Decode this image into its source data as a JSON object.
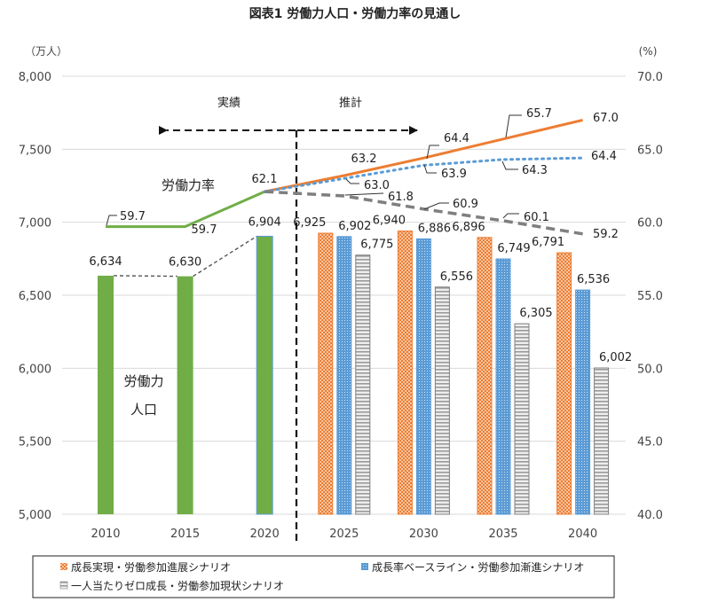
{
  "chart_data": {
    "type": "bar",
    "title": "図表1 労働力人口・労働力率の見通し",
    "categories": [
      "2010",
      "2015",
      "2020",
      "2025",
      "2030",
      "2035",
      "2040"
    ],
    "left_axis": {
      "unit_label": "（万人）",
      "ylim": [
        5000,
        8000
      ],
      "ticks": [
        "5,000",
        "5,500",
        "6,000",
        "6,500",
        "7,000",
        "7,500",
        "8,000"
      ],
      "tick_values": [
        5000,
        5500,
        6000,
        6500,
        7000,
        7500,
        8000
      ]
    },
    "right_axis": {
      "unit_label": "(%)",
      "ylim": [
        40,
        70
      ],
      "ticks": [
        "40.0",
        "45.0",
        "50.0",
        "55.0",
        "60.0",
        "65.0",
        "70.0"
      ],
      "tick_values": [
        40,
        45,
        50,
        55,
        60,
        65,
        70
      ]
    },
    "grid": true,
    "actual_bars": {
      "name": "労働力人口（実績）",
      "color": "#70ad47",
      "categories": [
        "2010",
        "2015",
        "2020"
      ],
      "values": [
        6634,
        6630,
        6904
      ],
      "labels": [
        "6,634",
        "6,630",
        "6,904"
      ]
    },
    "bar_series": [
      {
        "name": "成長実現・労働参加進展シナリオ",
        "color": "#ed7d31",
        "pattern": "checker",
        "categories": [
          "2025",
          "2030",
          "2035",
          "2040"
        ],
        "values": [
          6925,
          6940,
          6896,
          6791
        ],
        "labels": [
          "6,925",
          "6,940",
          "6,896",
          "6,791"
        ]
      },
      {
        "name": "成長率ベースライン・労働参加漸進シナリオ",
        "color": "#5b9bd5",
        "pattern": "dots",
        "categories": [
          "2025",
          "2030",
          "2035",
          "2040"
        ],
        "values": [
          6902,
          6886,
          6749,
          6536
        ],
        "labels": [
          "6,902",
          "6,886",
          "6,749",
          "6,536"
        ]
      },
      {
        "name": "一人当たりゼロ成長・労働参加現状シナリオ",
        "color": "#a5a5a5",
        "pattern": "hlines",
        "categories": [
          "2025",
          "2030",
          "2035",
          "2040"
        ],
        "values": [
          6775,
          6556,
          6305,
          6002
        ],
        "labels": [
          "6,775",
          "6,556",
          "6,305",
          "6,002"
        ]
      }
    ],
    "line_series": [
      {
        "name": "労働力率（実績）",
        "color": "#70ad47",
        "style": "solid",
        "x": [
          "2010",
          "2015",
          "2020"
        ],
        "values": [
          59.7,
          59.7,
          62.1
        ],
        "labels": [
          "59.7",
          "59.7",
          "62.1"
        ]
      },
      {
        "name": "労働力率（成長実現・労働参加進展）",
        "color": "#ed7d31",
        "style": "solid",
        "x": [
          "2020",
          "2025",
          "2030",
          "2035",
          "2040"
        ],
        "values": [
          62.1,
          63.2,
          64.4,
          65.7,
          67.0
        ],
        "labels": [
          "",
          "63.2",
          "64.4",
          "65.7",
          "67.0"
        ]
      },
      {
        "name": "労働力率（成長率ベースライン・労働参加漸進）",
        "color": "#5b9bd5",
        "style": "dotted",
        "x": [
          "2020",
          "2025",
          "2030",
          "2035",
          "2040"
        ],
        "values": [
          62.1,
          63.0,
          63.9,
          64.3,
          64.4
        ],
        "labels": [
          "",
          "63.0",
          "63.9",
          "64.3",
          "64.4"
        ]
      },
      {
        "name": "労働力率（一人当たりゼロ成長・労働参加現状）",
        "color": "#7f7f7f",
        "style": "dashed",
        "x": [
          "2020",
          "2025",
          "2030",
          "2035",
          "2040"
        ],
        "values": [
          62.1,
          61.8,
          60.9,
          60.1,
          59.2
        ],
        "labels": [
          "",
          "61.8",
          "60.9",
          "60.1",
          "59.2"
        ]
      }
    ],
    "trend_line": {
      "name": "労働力人口推移（実績）",
      "style": "dashed",
      "x": [
        "2010",
        "2015",
        "2020"
      ],
      "values": [
        6634,
        6630,
        6904
      ]
    },
    "annotations": {
      "actual": "実績",
      "projection": "推計",
      "rate_label": "労働力率",
      "population_label_line1": "労働力",
      "population_label_line2": "人口"
    },
    "legend": {
      "placement": "bottom",
      "items": [
        "成長実現・労働参加進展シナリオ",
        "成長率ベースライン・労働参加漸進シナリオ",
        "一人当たりゼロ成長・労働参加現状シナリオ"
      ]
    }
  }
}
